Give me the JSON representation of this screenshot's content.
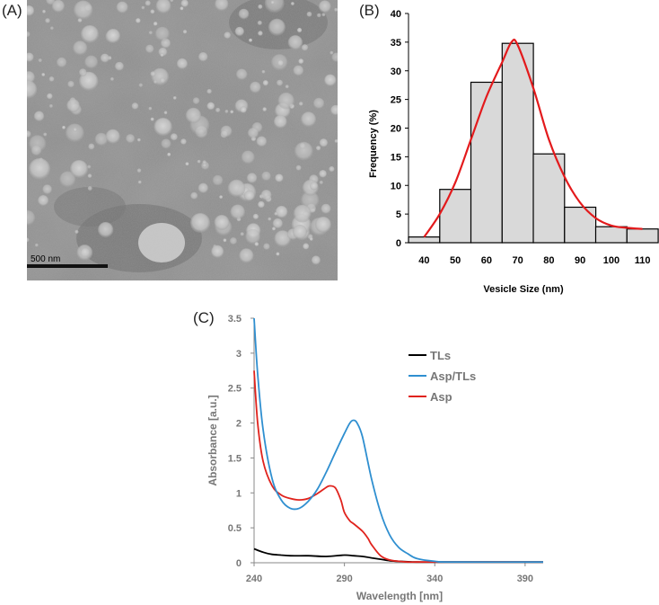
{
  "panels": {
    "a": {
      "label": "(A)",
      "scale_bar_label": "500 nm"
    },
    "b": {
      "label": "(B)"
    },
    "c": {
      "label": "(C)"
    }
  },
  "chart_data": [
    {
      "type": "bar",
      "title": "",
      "xlabel": "Vesicle Size (nm)",
      "ylabel": "Frequency (%)",
      "categories": [
        "40",
        "50",
        "60",
        "70",
        "80",
        "90",
        "100",
        "110"
      ],
      "values": [
        1,
        9.3,
        28,
        34.8,
        15.5,
        6.2,
        2.8,
        2.4
      ],
      "ylim": [
        0,
        40
      ],
      "yticks": [
        "0",
        "5",
        "10",
        "15",
        "20",
        "25",
        "30",
        "35",
        "40"
      ],
      "colors": {
        "bar": "#d9d9d9",
        "bar_edge": "#000000",
        "fit": "#e31a1c"
      },
      "fit_curve": {
        "x": [
          40,
          45,
          50,
          55,
          60,
          65,
          68,
          70,
          75,
          80,
          85,
          90,
          95,
          100,
          105,
          110
        ],
        "y": [
          1,
          5,
          10.5,
          18,
          25.5,
          31.5,
          35,
          34.5,
          27,
          18,
          11.5,
          7,
          4.3,
          3,
          2.6,
          2.4
        ]
      }
    },
    {
      "type": "line",
      "title": "",
      "xlabel": "Wavelength [nm]",
      "ylabel": "Absorbance  [a.u.]",
      "xlim": [
        240,
        400
      ],
      "ylim": [
        0,
        3.5
      ],
      "xticks": [
        "240",
        "290",
        "340",
        "390"
      ],
      "yticks": [
        "0",
        "0.5",
        "1",
        "1.5",
        "2",
        "2.5",
        "3",
        "3.5"
      ],
      "series": [
        {
          "name": "TLs",
          "color": "#000000",
          "x": [
            240,
            245,
            250,
            255,
            260,
            270,
            280,
            290,
            295,
            300,
            305,
            310,
            315,
            320,
            330,
            340,
            350,
            400
          ],
          "y": [
            0.2,
            0.15,
            0.12,
            0.11,
            0.1,
            0.1,
            0.09,
            0.11,
            0.1,
            0.09,
            0.07,
            0.05,
            0.03,
            0.02,
            0.01,
            0.01,
            0.01,
            0.01
          ]
        },
        {
          "name": "Asp/TLs",
          "color": "#2f8fd0",
          "x": [
            240,
            242,
            245,
            250,
            255,
            260,
            265,
            270,
            275,
            280,
            285,
            290,
            293,
            295,
            297,
            300,
            305,
            310,
            315,
            320,
            325,
            330,
            340,
            350,
            400
          ],
          "y": [
            3.5,
            2.7,
            1.9,
            1.2,
            0.9,
            0.78,
            0.78,
            0.88,
            1.05,
            1.3,
            1.58,
            1.85,
            2.0,
            2.04,
            2.0,
            1.8,
            1.2,
            0.72,
            0.4,
            0.22,
            0.13,
            0.06,
            0.02,
            0.01,
            0.01
          ]
        },
        {
          "name": "Asp",
          "color": "#e0231d",
          "x": [
            240,
            242,
            245,
            250,
            255,
            260,
            265,
            270,
            275,
            280,
            282,
            285,
            288,
            290,
            293,
            295,
            300,
            303,
            305,
            310,
            315,
            320,
            325,
            330,
            340,
            400
          ],
          "y": [
            2.75,
            2.0,
            1.45,
            1.1,
            0.97,
            0.92,
            0.9,
            0.92,
            0.99,
            1.08,
            1.1,
            1.07,
            0.9,
            0.72,
            0.6,
            0.56,
            0.45,
            0.35,
            0.26,
            0.1,
            0.04,
            0.02,
            0.01,
            0.01,
            0.01,
            0.01
          ]
        }
      ],
      "legend_position": "right"
    }
  ]
}
